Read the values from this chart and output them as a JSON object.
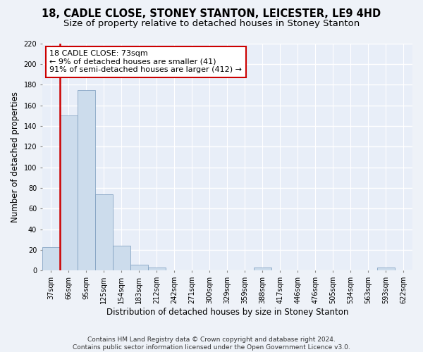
{
  "title": "18, CADLE CLOSE, STONEY STANTON, LEICESTER, LE9 4HD",
  "subtitle": "Size of property relative to detached houses in Stoney Stanton",
  "xlabel": "Distribution of detached houses by size in Stoney Stanton",
  "ylabel": "Number of detached properties",
  "footnote1": "Contains HM Land Registry data © Crown copyright and database right 2024.",
  "footnote2": "Contains public sector information licensed under the Open Government Licence v3.0.",
  "annotation_line1": "18 CADLE CLOSE: 73sqm",
  "annotation_line2": "← 9% of detached houses are smaller (41)",
  "annotation_line3": "91% of semi-detached houses are larger (412) →",
  "categories": [
    "37sqm",
    "66sqm",
    "95sqm",
    "125sqm",
    "154sqm",
    "183sqm",
    "212sqm",
    "242sqm",
    "271sqm",
    "300sqm",
    "329sqm",
    "359sqm",
    "388sqm",
    "417sqm",
    "446sqm",
    "476sqm",
    "505sqm",
    "534sqm",
    "563sqm",
    "593sqm",
    "622sqm"
  ],
  "values": [
    23,
    150,
    175,
    74,
    24,
    6,
    3,
    0,
    0,
    0,
    0,
    0,
    3,
    0,
    0,
    0,
    0,
    0,
    0,
    3,
    0
  ],
  "bar_color": "#ccdcec",
  "bar_edge_color": "#7799bb",
  "vline_color": "#cc0000",
  "vline_lw": 1.8,
  "vline_x": 0.5,
  "annotation_box_edgecolor": "#cc0000",
  "annotation_box_facecolor": "#ffffff",
  "ylim": [
    0,
    220
  ],
  "yticks": [
    0,
    20,
    40,
    60,
    80,
    100,
    120,
    140,
    160,
    180,
    200,
    220
  ],
  "bg_color": "#eef2f8",
  "plot_bg_color": "#e8eef8",
  "grid_color": "#ffffff",
  "title_fontsize": 10.5,
  "subtitle_fontsize": 9.5,
  "axis_label_fontsize": 8.5,
  "tick_fontsize": 7,
  "annotation_fontsize": 8,
  "footnote_fontsize": 6.5
}
